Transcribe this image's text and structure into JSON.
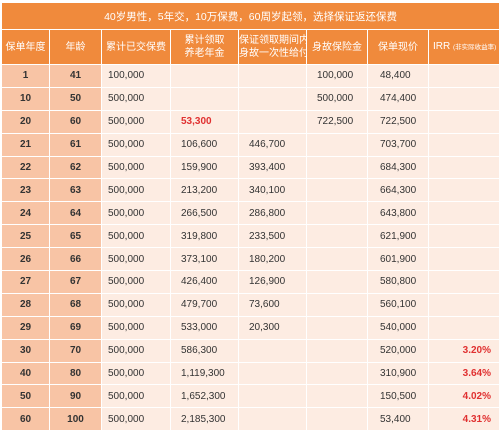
{
  "title": "40岁男性，5年交，10万保费，60周岁起领，选择保证返还保费",
  "headers": {
    "year": "保单年度",
    "age": "年龄",
    "premium": "累计已交保费",
    "annuity_l1": "累计领取",
    "annuity_l2": "养老年金",
    "lump_l1": "保证领取期间内",
    "lump_l2": "身故一次性给付",
    "death": "身故保险金",
    "cash": "保单现价",
    "irr": "IRR",
    "irr_note": "(非实际收益率)"
  },
  "rows": [
    {
      "year": "1",
      "age": "41",
      "premium": "100,000",
      "annuity": "",
      "lump": "",
      "death": "100,000",
      "cash": "48,400",
      "irr": ""
    },
    {
      "year": "10",
      "age": "50",
      "premium": "500,000",
      "annuity": "",
      "lump": "",
      "death": "500,000",
      "cash": "474,400",
      "irr": ""
    },
    {
      "year": "20",
      "age": "60",
      "premium": "500,000",
      "annuity": "53,300",
      "lump": "",
      "death": "722,500",
      "cash": "722,500",
      "irr": ""
    },
    {
      "year": "21",
      "age": "61",
      "premium": "500,000",
      "annuity": "106,600",
      "lump": "446,700",
      "death": "",
      "cash": "703,700",
      "irr": ""
    },
    {
      "year": "22",
      "age": "62",
      "premium": "500,000",
      "annuity": "159,900",
      "lump": "393,400",
      "death": "",
      "cash": "684,300",
      "irr": ""
    },
    {
      "year": "23",
      "age": "63",
      "premium": "500,000",
      "annuity": "213,200",
      "lump": "340,100",
      "death": "",
      "cash": "664,300",
      "irr": ""
    },
    {
      "year": "24",
      "age": "64",
      "premium": "500,000",
      "annuity": "266,500",
      "lump": "286,800",
      "death": "",
      "cash": "643,800",
      "irr": ""
    },
    {
      "year": "25",
      "age": "65",
      "premium": "500,000",
      "annuity": "319,800",
      "lump": "233,500",
      "death": "",
      "cash": "621,900",
      "irr": ""
    },
    {
      "year": "26",
      "age": "66",
      "premium": "500,000",
      "annuity": "373,100",
      "lump": "180,200",
      "death": "",
      "cash": "601,900",
      "irr": ""
    },
    {
      "year": "27",
      "age": "67",
      "premium": "500,000",
      "annuity": "426,400",
      "lump": "126,900",
      "death": "",
      "cash": "580,800",
      "irr": ""
    },
    {
      "year": "28",
      "age": "68",
      "premium": "500,000",
      "annuity": "479,700",
      "lump": "73,600",
      "death": "",
      "cash": "560,100",
      "irr": ""
    },
    {
      "year": "29",
      "age": "69",
      "premium": "500,000",
      "annuity": "533,000",
      "lump": "20,300",
      "death": "",
      "cash": "540,000",
      "irr": ""
    },
    {
      "year": "30",
      "age": "70",
      "premium": "500,000",
      "annuity": "586,300",
      "lump": "",
      "death": "",
      "cash": "520,000",
      "irr": "3.20%"
    },
    {
      "year": "40",
      "age": "80",
      "premium": "500,000",
      "annuity": "1,119,300",
      "lump": "",
      "death": "",
      "cash": "310,900",
      "irr": "3.64%"
    },
    {
      "year": "50",
      "age": "90",
      "premium": "500,000",
      "annuity": "1,652,300",
      "lump": "",
      "death": "",
      "cash": "150,500",
      "irr": "4.02%"
    },
    {
      "year": "60",
      "age": "100",
      "premium": "500,000",
      "annuity": "2,185,300",
      "lump": "",
      "death": "",
      "cash": "53,400",
      "irr": "4.31%"
    }
  ],
  "colors": {
    "header_bg": "#f08a3c",
    "key_col_bg": "#f8c4a5",
    "cell_bg": "#fdece2",
    "highlight_red": "#e03030"
  }
}
